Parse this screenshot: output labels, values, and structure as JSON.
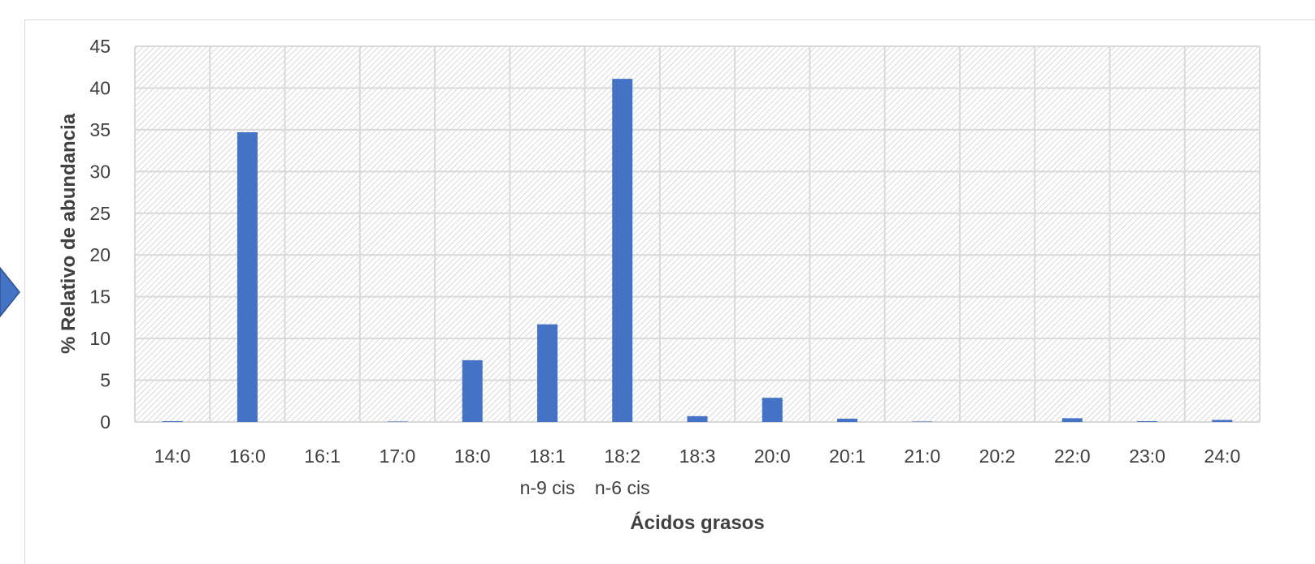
{
  "chart_data": {
    "type": "bar",
    "title": "",
    "xlabel": "Ácidos grasos",
    "ylabel": "% Relativo de abundancia",
    "categories": [
      [
        "14:0"
      ],
      [
        "16:0"
      ],
      [
        "16:1"
      ],
      [
        "17:0"
      ],
      [
        "18:0"
      ],
      [
        "18:1",
        "n-9 cis"
      ],
      [
        "18:2",
        "n-6 cis"
      ],
      [
        "18:3"
      ],
      [
        "20:0"
      ],
      [
        "20:1"
      ],
      [
        "21:0"
      ],
      [
        "20:2"
      ],
      [
        "22:0"
      ],
      [
        "23:0"
      ],
      [
        "24:0"
      ]
    ],
    "values": [
      0.1,
      34.7,
      0.0,
      0.05,
      7.4,
      11.7,
      41.1,
      0.7,
      2.9,
      0.4,
      0.05,
      0.0,
      0.45,
      0.1,
      0.25
    ],
    "ylim": [
      0,
      45
    ],
    "yticks": [
      0,
      5,
      10,
      15,
      20,
      25,
      30,
      35,
      40,
      45
    ],
    "grid": true,
    "legend": "none",
    "colors": {
      "bar": "#4472c4",
      "grid": "#d9d9d9",
      "hatch": "#c8c8c8",
      "text": "#404040",
      "marker": "#4472c4"
    }
  }
}
